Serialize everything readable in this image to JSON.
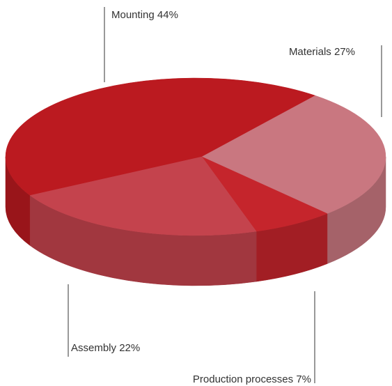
{
  "chart_data": {
    "type": "pie",
    "categories": [
      "Mounting",
      "Materials",
      "Production processes",
      "Assembly"
    ],
    "values": [
      44,
      27,
      7,
      22
    ],
    "value_labels": [
      "44%",
      "27%",
      "7%",
      "22%"
    ],
    "colors": [
      "#bb1a20",
      "#c97780",
      "#c5252c",
      "#c4434d"
    ]
  }
}
